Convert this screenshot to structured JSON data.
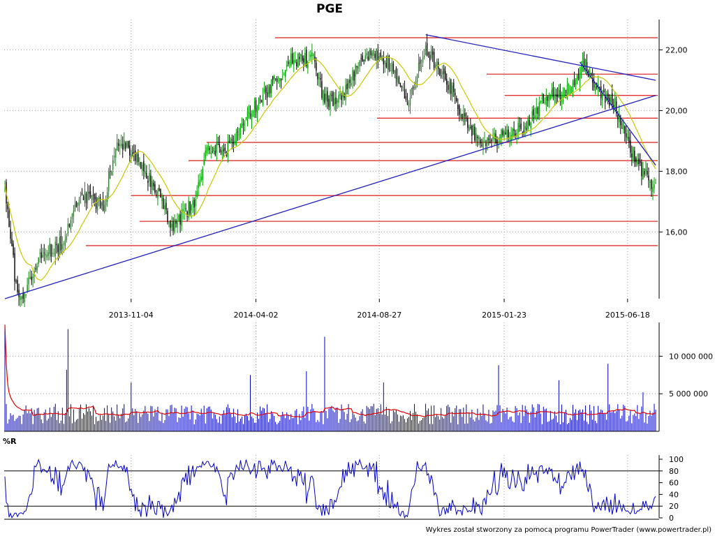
{
  "chart_data": [
    {
      "type": "candlestick",
      "title": "PGE",
      "xlabel": "",
      "ylabel": "",
      "x_ticks": [
        "2013-11-04",
        "2014-04-02",
        "2014-08-27",
        "2015-01-23",
        "2015-06-18"
      ],
      "y_ticks": [
        "16,00",
        "18,00",
        "20,00",
        "22,00"
      ],
      "ylim": [
        13.8,
        23.0
      ],
      "grid": true,
      "session_count": 465,
      "close_anchors": [
        [
          0,
          17.5
        ],
        [
          8,
          14.2
        ],
        [
          14,
          13.9
        ],
        [
          25,
          15.2
        ],
        [
          40,
          15.6
        ],
        [
          55,
          17.2
        ],
        [
          70,
          16.9
        ],
        [
          80,
          19.0
        ],
        [
          95,
          18.5
        ],
        [
          108,
          17.3
        ],
        [
          120,
          16.2
        ],
        [
          135,
          17.0
        ],
        [
          145,
          18.8
        ],
        [
          160,
          18.7
        ],
        [
          175,
          20.0
        ],
        [
          190,
          20.8
        ],
        [
          205,
          21.7
        ],
        [
          220,
          21.7
        ],
        [
          228,
          20.3
        ],
        [
          240,
          20.4
        ],
        [
          252,
          21.5
        ],
        [
          262,
          22.0
        ],
        [
          275,
          21.5
        ],
        [
          287,
          20.3
        ],
        [
          300,
          22.0
        ],
        [
          315,
          21.0
        ],
        [
          330,
          19.5
        ],
        [
          342,
          18.9
        ],
        [
          358,
          19.3
        ],
        [
          370,
          19.4
        ],
        [
          385,
          20.5
        ],
        [
          395,
          20.5
        ],
        [
          405,
          21.0
        ],
        [
          413,
          21.5
        ],
        [
          425,
          20.5
        ],
        [
          435,
          20.2
        ],
        [
          445,
          18.8
        ],
        [
          455,
          18.0
        ],
        [
          464,
          17.5
        ]
      ],
      "support_resistance_levels": [
        22.4,
        21.2,
        20.5,
        19.75,
        18.95,
        18.35,
        17.2,
        16.35,
        15.55
      ],
      "trendlines": [
        {
          "from": [
            0,
            13.8
          ],
          "to": [
            465,
            20.5
          ]
        },
        {
          "from": [
            300,
            22.5
          ],
          "to": [
            465,
            21.0
          ]
        },
        {
          "from": [
            410,
            21.6
          ],
          "to": [
            465,
            18.2
          ]
        }
      ],
      "moving_average_period": 20,
      "colors": {
        "bull": "#00a000",
        "bear": "#000000",
        "ma": "#c8c800",
        "levels": "#e03030",
        "trend": "#2020c0",
        "grid": "#a0a0a0"
      }
    },
    {
      "type": "bar",
      "name": "volume",
      "y_ticks": [
        "5 000 000",
        "10 000 000"
      ],
      "ylim": [
        0,
        14500000
      ],
      "base_volume": 2300000,
      "spikes": [
        [
          0,
          14200000
        ],
        [
          45,
          13600000
        ],
        [
          44,
          8200000
        ],
        [
          228,
          12600000
        ],
        [
          215,
          8000000
        ],
        [
          352,
          8800000
        ],
        [
          430,
          9000000
        ],
        [
          90,
          6500000
        ],
        [
          175,
          7500000
        ],
        [
          270,
          6500000
        ],
        [
          395,
          6800000
        ],
        [
          455,
          5200000
        ]
      ],
      "moving_average_period": 20,
      "colors": {
        "bars": "#0000c8",
        "ma": "#e00000"
      }
    },
    {
      "type": "line",
      "name": "%R",
      "title": "%R",
      "y_ticks": [
        "0",
        "20",
        "40",
        "60",
        "80",
        "100"
      ],
      "ylim": [
        0,
        100
      ],
      "reference_levels": [
        20,
        80
      ],
      "period": 14,
      "colors": {
        "line": "#0000c8",
        "reference": "#000000"
      }
    }
  ],
  "footer": "Wykres został stworzony za pomocą programu PowerTrader (www.powertrader.pl)"
}
